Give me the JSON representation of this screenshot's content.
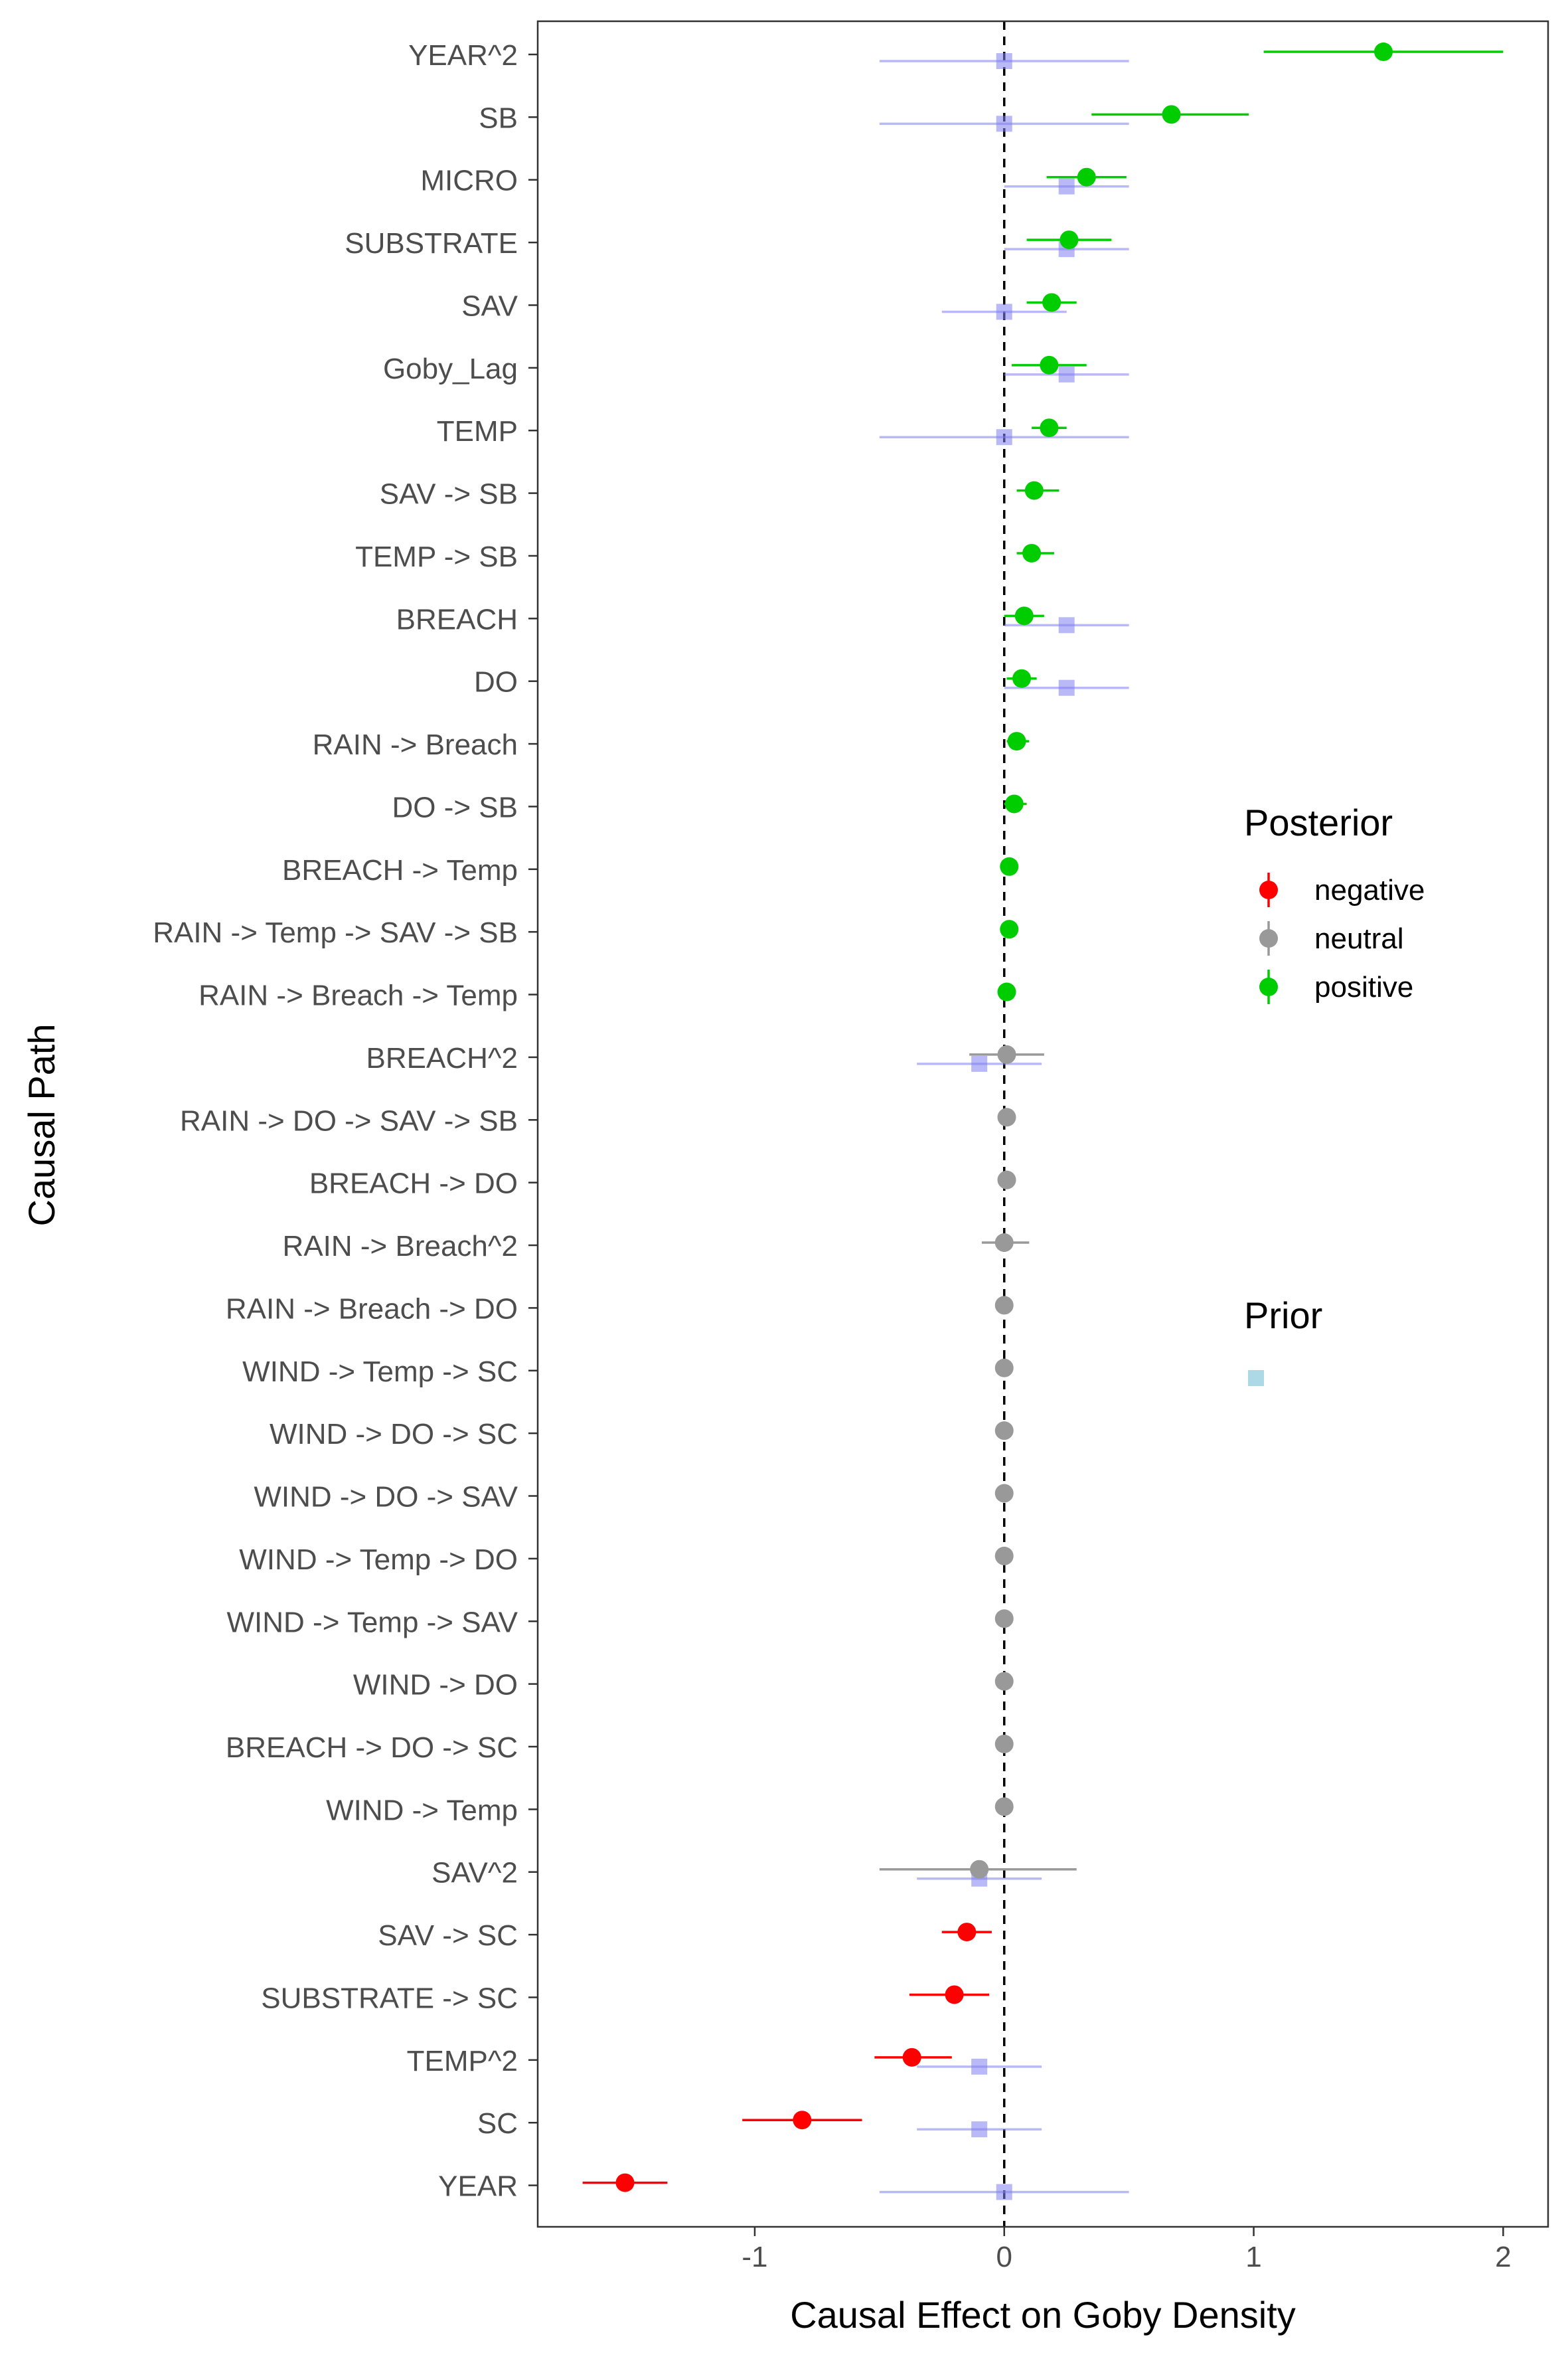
{
  "chart_data": {
    "type": "forest",
    "xlabel": "Causal Effect on Goby Density",
    "ylabel": "Causal Path",
    "xlim": [
      -1.87,
      2.18
    ],
    "x_ticks": [
      -1,
      0,
      1,
      2
    ],
    "x_tick_labels": [
      "-1",
      "0",
      "1",
      "2"
    ],
    "reference_line": {
      "x": 0,
      "style": "dashed",
      "color": "#000000"
    },
    "grid": false,
    "legend_position": "right",
    "legends": {
      "posterior": {
        "title": "Posterior",
        "entries": [
          {
            "label": "negative",
            "color": "#ff0000"
          },
          {
            "label": "neutral",
            "color": "#999999"
          },
          {
            "label": "positive",
            "color": "#00cd00"
          }
        ]
      },
      "prior": {
        "title": "Prior",
        "color": "#add8e6"
      }
    },
    "prior_color": "#8080f0",
    "paths": [
      {
        "label": "YEAR^2",
        "posterior": {
          "mean": 1.52,
          "lo": 1.04,
          "hi": 2.0,
          "sign": "positive"
        },
        "prior": {
          "mean": 0.0,
          "lo": -0.5,
          "hi": 0.5
        }
      },
      {
        "label": "SB",
        "posterior": {
          "mean": 0.67,
          "lo": 0.35,
          "hi": 0.98,
          "sign": "positive"
        },
        "prior": {
          "mean": 0.0,
          "lo": -0.5,
          "hi": 0.5
        }
      },
      {
        "label": "MICRO",
        "posterior": {
          "mean": 0.33,
          "lo": 0.17,
          "hi": 0.49,
          "sign": "positive"
        },
        "prior": {
          "mean": 0.25,
          "lo": 0.0,
          "hi": 0.5
        }
      },
      {
        "label": "SUBSTRATE",
        "posterior": {
          "mean": 0.26,
          "lo": 0.09,
          "hi": 0.43,
          "sign": "positive"
        },
        "prior": {
          "mean": 0.25,
          "lo": 0.0,
          "hi": 0.5
        }
      },
      {
        "label": "SAV",
        "posterior": {
          "mean": 0.19,
          "lo": 0.09,
          "hi": 0.29,
          "sign": "positive"
        },
        "prior": {
          "mean": 0.0,
          "lo": -0.25,
          "hi": 0.25
        }
      },
      {
        "label": "Goby_Lag",
        "posterior": {
          "mean": 0.18,
          "lo": 0.03,
          "hi": 0.33,
          "sign": "positive"
        },
        "prior": {
          "mean": 0.25,
          "lo": 0.0,
          "hi": 0.5
        }
      },
      {
        "label": "TEMP",
        "posterior": {
          "mean": 0.18,
          "lo": 0.11,
          "hi": 0.25,
          "sign": "positive"
        },
        "prior": {
          "mean": 0.0,
          "lo": -0.5,
          "hi": 0.5
        }
      },
      {
        "label": "SAV -> SB",
        "posterior": {
          "mean": 0.12,
          "lo": 0.05,
          "hi": 0.22,
          "sign": "positive"
        }
      },
      {
        "label": "TEMP -> SB",
        "posterior": {
          "mean": 0.11,
          "lo": 0.05,
          "hi": 0.2,
          "sign": "positive"
        }
      },
      {
        "label": "BREACH",
        "posterior": {
          "mean": 0.08,
          "lo": 0.0,
          "hi": 0.16,
          "sign": "positive"
        },
        "prior": {
          "mean": 0.25,
          "lo": 0.0,
          "hi": 0.5
        }
      },
      {
        "label": "DO",
        "posterior": {
          "mean": 0.07,
          "lo": 0.01,
          "hi": 0.13,
          "sign": "positive"
        },
        "prior": {
          "mean": 0.25,
          "lo": 0.0,
          "hi": 0.5
        }
      },
      {
        "label": "RAIN -> Breach",
        "posterior": {
          "mean": 0.05,
          "lo": 0.01,
          "hi": 0.1,
          "sign": "positive"
        }
      },
      {
        "label": "DO -> SB",
        "posterior": {
          "mean": 0.04,
          "lo": 0.0,
          "hi": 0.09,
          "sign": "positive"
        }
      },
      {
        "label": "BREACH -> Temp",
        "posterior": {
          "mean": 0.02,
          "lo": 0.0,
          "hi": 0.04,
          "sign": "positive"
        }
      },
      {
        "label": "RAIN -> Temp -> SAV -> SB",
        "posterior": {
          "mean": 0.02,
          "lo": 0.0,
          "hi": 0.03,
          "sign": "positive"
        }
      },
      {
        "label": "RAIN -> Breach -> Temp",
        "posterior": {
          "mean": 0.01,
          "lo": 0.0,
          "hi": 0.03,
          "sign": "positive"
        }
      },
      {
        "label": "BREACH^2",
        "posterior": {
          "mean": 0.01,
          "lo": -0.14,
          "hi": 0.16,
          "sign": "neutral"
        },
        "prior": {
          "mean": -0.1,
          "lo": -0.35,
          "hi": 0.15
        }
      },
      {
        "label": "RAIN -> DO -> SAV -> SB",
        "posterior": {
          "mean": 0.01,
          "lo": -0.01,
          "hi": 0.02,
          "sign": "neutral"
        }
      },
      {
        "label": "BREACH -> DO",
        "posterior": {
          "mean": 0.01,
          "lo": -0.01,
          "hi": 0.02,
          "sign": "neutral"
        }
      },
      {
        "label": "RAIN -> Breach^2",
        "posterior": {
          "mean": 0.0,
          "lo": -0.09,
          "hi": 0.1,
          "sign": "neutral"
        }
      },
      {
        "label": "RAIN -> Breach -> DO",
        "posterior": {
          "mean": 0.0,
          "lo": -0.01,
          "hi": 0.01,
          "sign": "neutral"
        }
      },
      {
        "label": "WIND -> Temp -> SC",
        "posterior": {
          "mean": 0.0,
          "lo": -0.01,
          "hi": 0.01,
          "sign": "neutral"
        }
      },
      {
        "label": "WIND -> DO -> SC",
        "posterior": {
          "mean": 0.0,
          "lo": -0.01,
          "hi": 0.01,
          "sign": "neutral"
        }
      },
      {
        "label": "WIND -> DO -> SAV",
        "posterior": {
          "mean": 0.0,
          "lo": -0.01,
          "hi": 0.01,
          "sign": "neutral"
        }
      },
      {
        "label": "WIND -> Temp -> DO",
        "posterior": {
          "mean": 0.0,
          "lo": -0.01,
          "hi": 0.01,
          "sign": "neutral"
        }
      },
      {
        "label": "WIND -> Temp -> SAV",
        "posterior": {
          "mean": 0.0,
          "lo": -0.01,
          "hi": 0.01,
          "sign": "neutral"
        }
      },
      {
        "label": "WIND -> DO",
        "posterior": {
          "mean": 0.0,
          "lo": -0.01,
          "hi": 0.01,
          "sign": "neutral"
        }
      },
      {
        "label": "BREACH -> DO -> SC",
        "posterior": {
          "mean": 0.0,
          "lo": -0.01,
          "hi": 0.01,
          "sign": "neutral"
        }
      },
      {
        "label": "WIND -> Temp",
        "posterior": {
          "mean": 0.0,
          "lo": -0.01,
          "hi": 0.01,
          "sign": "neutral"
        }
      },
      {
        "label": "SAV^2",
        "posterior": {
          "mean": -0.1,
          "lo": -0.5,
          "hi": 0.29,
          "sign": "neutral"
        },
        "prior": {
          "mean": -0.1,
          "lo": -0.35,
          "hi": 0.15
        }
      },
      {
        "label": "SAV -> SC",
        "posterior": {
          "mean": -0.15,
          "lo": -0.25,
          "hi": -0.05,
          "sign": "negative"
        }
      },
      {
        "label": "SUBSTRATE -> SC",
        "posterior": {
          "mean": -0.2,
          "lo": -0.38,
          "hi": -0.06,
          "sign": "negative"
        }
      },
      {
        "label": "TEMP^2",
        "posterior": {
          "mean": -0.37,
          "lo": -0.52,
          "hi": -0.21,
          "sign": "negative"
        },
        "prior": {
          "mean": -0.1,
          "lo": -0.35,
          "hi": 0.15
        }
      },
      {
        "label": "SC",
        "posterior": {
          "mean": -0.81,
          "lo": -1.05,
          "hi": -0.57,
          "sign": "negative"
        },
        "prior": {
          "mean": -0.1,
          "lo": -0.35,
          "hi": 0.15
        }
      },
      {
        "label": "YEAR",
        "posterior": {
          "mean": -1.52,
          "lo": -1.69,
          "hi": -1.35,
          "sign": "negative"
        },
        "prior": {
          "mean": 0.0,
          "lo": -0.5,
          "hi": 0.5
        }
      }
    ]
  }
}
